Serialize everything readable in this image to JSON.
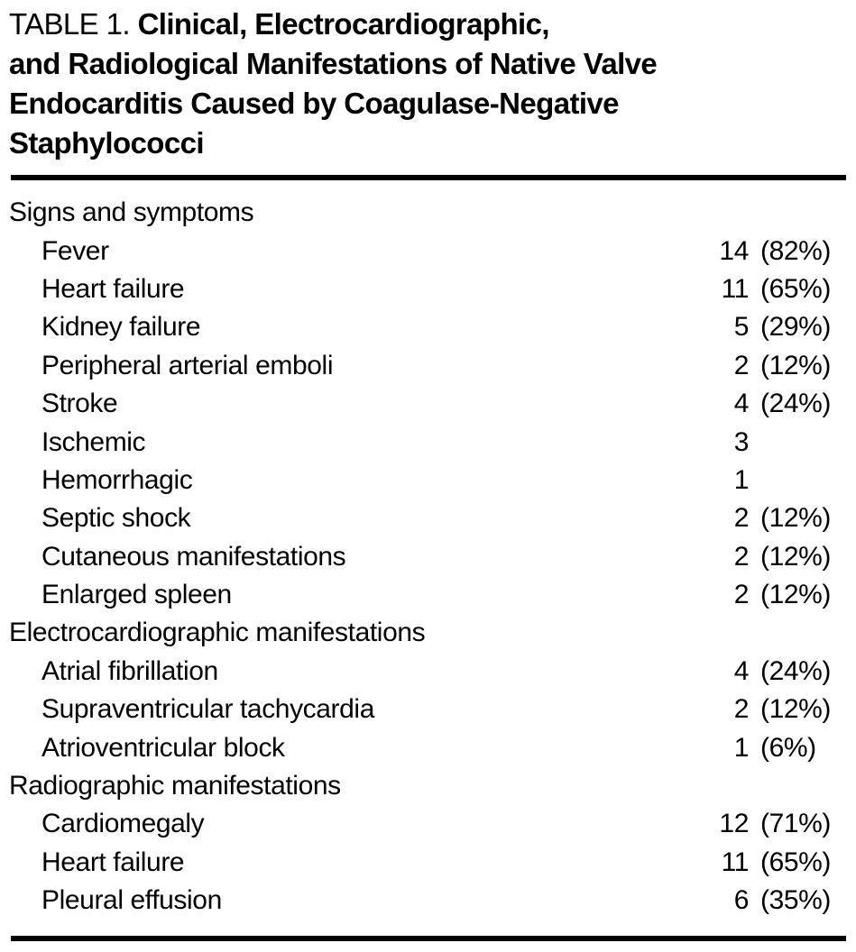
{
  "page": {
    "background_color": "#ffffff",
    "text_color": "#000000",
    "rule_color": "#000000"
  },
  "table": {
    "tag": "TABLE 1.",
    "title_lines": [
      "Clinical, Electrocardiographic,",
      "and Radiological Manifestations of Native Valve",
      "Endocarditis Caused by Coagulase-Negative",
      "Staphylococci"
    ],
    "sections": [
      {
        "header": "Signs and symptoms",
        "rows": [
          {
            "label": "Fever",
            "count": "14",
            "pct": "(82%)"
          },
          {
            "label": "Heart failure",
            "count": "11",
            "pct": "(65%)"
          },
          {
            "label": "Kidney failure",
            "count": "5",
            "pct": "(29%)"
          },
          {
            "label": "Peripheral arterial emboli",
            "count": "2",
            "pct": "(12%)"
          },
          {
            "label": "Stroke",
            "count": "4",
            "pct": "(24%)"
          },
          {
            "label": "Ischemic",
            "count": "3",
            "pct": ""
          },
          {
            "label": "Hemorrhagic",
            "count": "1",
            "pct": ""
          },
          {
            "label": "Septic shock",
            "count": "2",
            "pct": "(12%)"
          },
          {
            "label": "Cutaneous manifestations",
            "count": "2",
            "pct": "(12%)"
          },
          {
            "label": "Enlarged spleen",
            "count": "2",
            "pct": "(12%)"
          }
        ]
      },
      {
        "header": "Electrocardiographic manifestations",
        "rows": [
          {
            "label": "Atrial fibrillation",
            "count": "4",
            "pct": "(24%)"
          },
          {
            "label": "Supraventricular tachycardia",
            "count": "2",
            "pct": "(12%)"
          },
          {
            "label": "Atrioventricular block",
            "count": "1",
            "pct": "(6%)"
          }
        ]
      },
      {
        "header": "Radiographic manifestations",
        "rows": [
          {
            "label": "Cardiomegaly",
            "count": "12",
            "pct": "(71%)"
          },
          {
            "label": "Heart failure",
            "count": "11",
            "pct": "(65%)"
          },
          {
            "label": "Pleural effusion",
            "count": "6",
            "pct": "(35%)"
          }
        ]
      }
    ]
  }
}
